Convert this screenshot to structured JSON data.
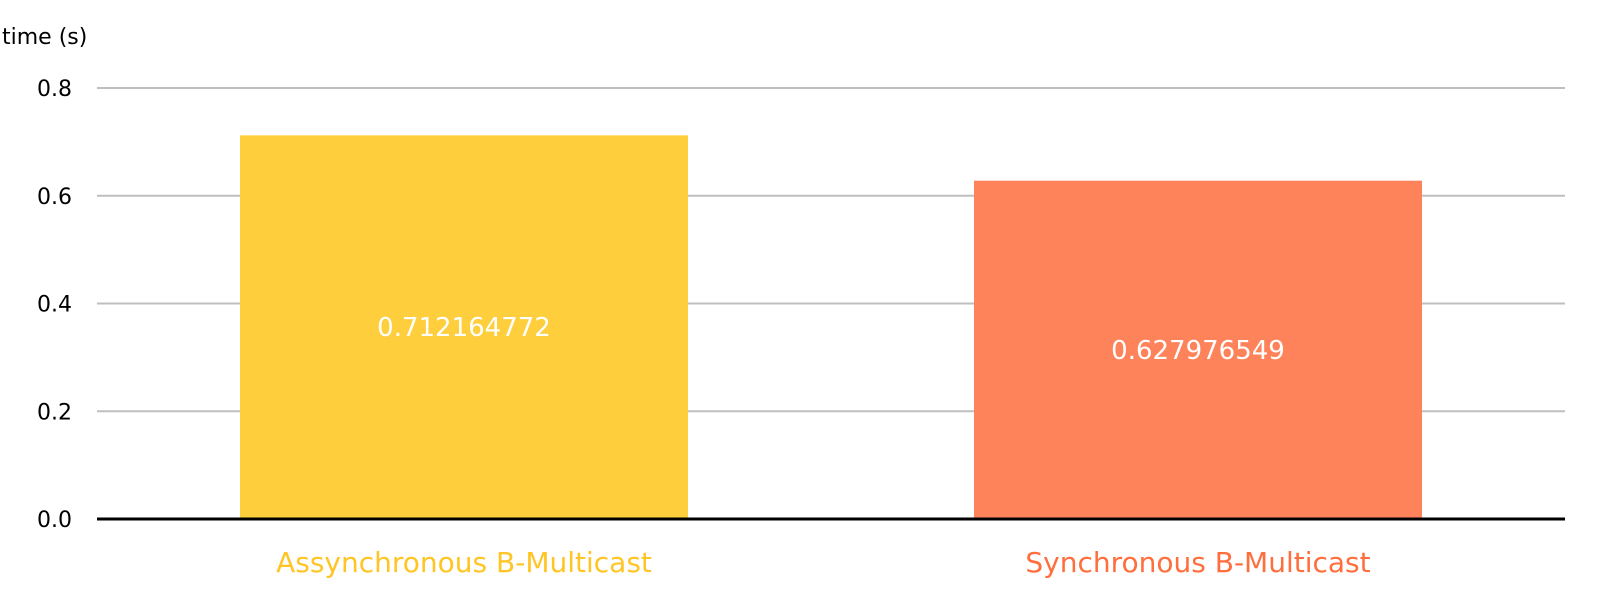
{
  "chart_data": {
    "type": "bar",
    "title": "",
    "xlabel": "",
    "ylabel": "time (s)",
    "ylim": [
      0,
      0.8
    ],
    "yticks": [
      "0.0",
      "0.2",
      "0.4",
      "0.6",
      "0.8"
    ],
    "grid": true,
    "categories": [
      "Assynchronous B-Multicast",
      "Synchronous B-Multicast"
    ],
    "values": [
      0.712164772,
      0.627976549
    ],
    "data_labels": [
      "0.712164772",
      "0.627976549"
    ],
    "colors": [
      "#FFCE3D",
      "#FF835A"
    ],
    "label_colors": [
      "#FFC525",
      "#FF6E3D"
    ]
  }
}
